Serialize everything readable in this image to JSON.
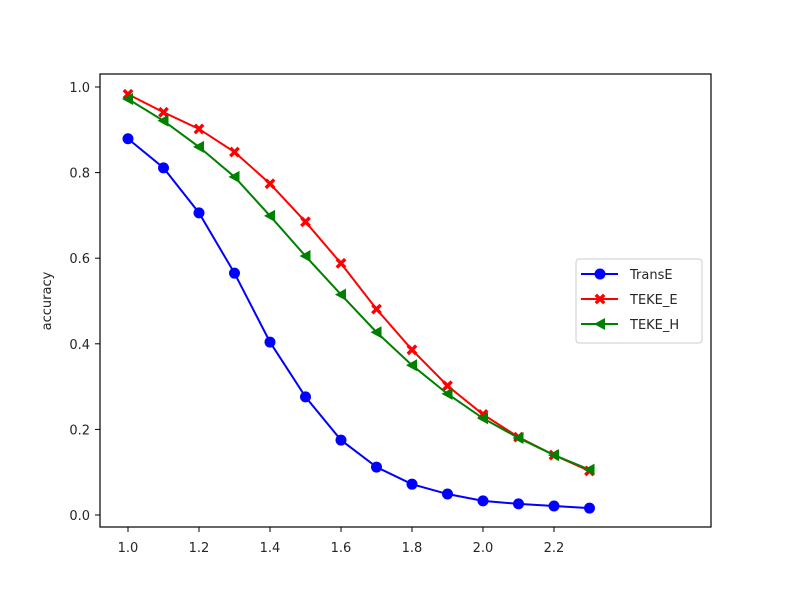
{
  "chart_data": {
    "type": "line",
    "title": "",
    "xlabel": "",
    "ylabel": "accuracy",
    "xlim": [
      0.935,
      2.365
    ],
    "ylim": [
      -0.03,
      1.03
    ],
    "grid": false,
    "legend_position": "center right",
    "x": [
      1.0,
      1.1,
      1.2,
      1.3,
      1.4,
      1.5,
      1.6,
      1.7,
      1.8,
      1.9,
      2.0,
      2.1,
      2.2,
      2.3
    ],
    "x_ticks": [
      "1.0",
      "1.2",
      "1.4",
      "1.6",
      "1.8",
      "2.0",
      "2.2"
    ],
    "x_tick_values": [
      1.0,
      1.2,
      1.4,
      1.6,
      1.8,
      2.0,
      2.2
    ],
    "y_ticks": [
      "0.0",
      "0.2",
      "0.4",
      "0.6",
      "0.8",
      "1.0"
    ],
    "y_tick_values": [
      0.0,
      0.2,
      0.4,
      0.6,
      0.8,
      1.0
    ],
    "series": [
      {
        "name": "TransE",
        "color": "#0000ff",
        "marker": "circle",
        "values": [
          0.879,
          0.811,
          0.706,
          0.565,
          0.404,
          0.276,
          0.175,
          0.112,
          0.072,
          0.049,
          0.033,
          0.026,
          0.021,
          0.016
        ]
      },
      {
        "name": "TEKE_E",
        "color": "#ff0000",
        "marker": "x-filled",
        "values": [
          0.983,
          0.941,
          0.902,
          0.848,
          0.774,
          0.685,
          0.588,
          0.481,
          0.386,
          0.302,
          0.235,
          0.182,
          0.14,
          0.103
        ]
      },
      {
        "name": "TEKE_H",
        "color": "#008000",
        "marker": "triangle-left",
        "values": [
          0.972,
          0.921,
          0.86,
          0.79,
          0.699,
          0.605,
          0.515,
          0.427,
          0.35,
          0.283,
          0.226,
          0.18,
          0.14,
          0.106
        ]
      }
    ]
  }
}
